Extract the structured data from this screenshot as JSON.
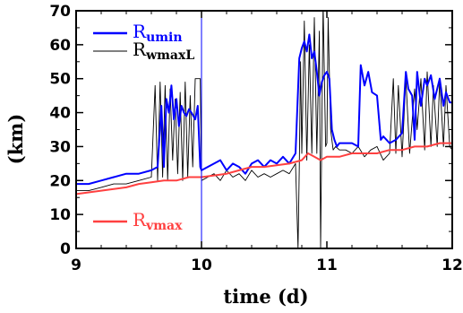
{
  "chart_data": {
    "type": "line",
    "xlabel": "time (d)",
    "ylabel": "(km)",
    "xlim": [
      9,
      12
    ],
    "ylim": [
      0,
      70
    ],
    "xticks": [
      "9",
      "10",
      "11",
      "12"
    ],
    "yticks": [
      "0",
      "10",
      "20",
      "30",
      "40",
      "50",
      "60",
      "70"
    ],
    "grid": false,
    "markers": [
      {
        "name": "vertical-marker",
        "x": 10,
        "color": "#0000ff"
      }
    ],
    "legend": [
      {
        "main": "R",
        "sub": "umin",
        "color": "#0000ff"
      },
      {
        "main": "R",
        "sub": "wmaxL",
        "color": "#000000"
      },
      {
        "main": "R",
        "sub": "vmax",
        "color": "#ff4040"
      }
    ],
    "series": [
      {
        "id": "black",
        "color": "#000000",
        "width": 0.9,
        "x": [
          9.0,
          9.1,
          9.2,
          9.3,
          9.4,
          9.5,
          9.6,
          9.63,
          9.65,
          9.67,
          9.69,
          9.71,
          9.73,
          9.75,
          9.77,
          9.79,
          9.81,
          9.83,
          9.85,
          9.87,
          9.89,
          9.91,
          9.93,
          9.95,
          9.97,
          9.99,
          10.0,
          10.05,
          10.1,
          10.15,
          10.2,
          10.25,
          10.3,
          10.35,
          10.4,
          10.45,
          10.5,
          10.55,
          10.6,
          10.65,
          10.7,
          10.75,
          10.77,
          10.78,
          10.79,
          10.8,
          10.82,
          10.84,
          10.86,
          10.88,
          10.9,
          10.92,
          10.94,
          10.95,
          10.97,
          10.99,
          11.0,
          11.01,
          11.03,
          11.05,
          11.07,
          11.1,
          11.15,
          11.2,
          11.25,
          11.3,
          11.35,
          11.4,
          11.45,
          11.5,
          11.53,
          11.55,
          11.57,
          11.6,
          11.63,
          11.66,
          11.7,
          11.72,
          11.75,
          11.78,
          11.8,
          11.83,
          11.85,
          11.88,
          11.9,
          11.93,
          11.95,
          11.98,
          12.0
        ],
        "y": [
          17,
          17,
          18,
          19,
          19,
          20,
          21,
          48,
          20,
          49,
          21,
          48,
          20,
          47,
          26,
          44,
          22,
          46,
          20,
          49,
          21,
          45,
          24,
          50,
          50,
          50,
          20,
          21,
          22,
          20,
          23,
          21,
          22,
          20,
          23,
          21,
          22,
          21,
          22,
          23,
          22,
          25,
          0,
          24,
          55,
          28,
          67,
          26,
          60,
          28,
          68,
          28,
          64,
          0,
          72,
          30,
          31,
          68,
          35,
          29,
          30,
          29,
          29,
          28,
          30,
          27,
          29,
          30,
          26,
          28,
          50,
          28,
          48,
          27,
          50,
          28,
          47,
          35,
          50,
          29,
          52,
          30,
          48,
          30,
          50,
          30,
          48,
          30,
          29
        ]
      },
      {
        "id": "blue",
        "color": "#0000ff",
        "width": 2.0,
        "x": [
          9.0,
          9.1,
          9.2,
          9.3,
          9.4,
          9.5,
          9.6,
          9.65,
          9.68,
          9.7,
          9.72,
          9.74,
          9.76,
          9.78,
          9.8,
          9.82,
          9.84,
          9.86,
          9.88,
          9.9,
          9.92,
          9.95,
          9.97,
          9.99,
          10.0,
          10.05,
          10.1,
          10.15,
          10.2,
          10.25,
          10.3,
          10.35,
          10.4,
          10.45,
          10.5,
          10.55,
          10.6,
          10.65,
          10.7,
          10.75,
          10.78,
          10.8,
          10.82,
          10.84,
          10.86,
          10.88,
          10.9,
          10.92,
          10.94,
          10.96,
          10.98,
          11.0,
          11.02,
          11.04,
          11.06,
          11.08,
          11.1,
          11.15,
          11.2,
          11.25,
          11.27,
          11.3,
          11.33,
          11.36,
          11.4,
          11.43,
          11.45,
          11.5,
          11.55,
          11.6,
          11.63,
          11.65,
          11.68,
          11.7,
          11.72,
          11.75,
          11.78,
          11.8,
          11.83,
          11.86,
          11.9,
          11.93,
          11.95,
          11.98,
          12.0
        ],
        "y": [
          19,
          19,
          20,
          21,
          22,
          22,
          23,
          24,
          42,
          24,
          44,
          40,
          48,
          38,
          44,
          36,
          42,
          40,
          39,
          41,
          40,
          38,
          42,
          24,
          23,
          24,
          25,
          26,
          23,
          25,
          24,
          22,
          25,
          26,
          24,
          26,
          25,
          27,
          25,
          28,
          56,
          59,
          61,
          58,
          63,
          56,
          58,
          52,
          45,
          49,
          51,
          52,
          50,
          35,
          32,
          30,
          31,
          31,
          31,
          30,
          54,
          48,
          52,
          46,
          45,
          32,
          33,
          31,
          32,
          34,
          52,
          47,
          45,
          32,
          52,
          42,
          50,
          48,
          51,
          44,
          50,
          42,
          46,
          43,
          43
        ]
      },
      {
        "id": "red",
        "color": "#ff4040",
        "width": 2.0,
        "x": [
          9.0,
          9.1,
          9.2,
          9.3,
          9.4,
          9.5,
          9.6,
          9.7,
          9.8,
          9.9,
          10.0,
          10.1,
          10.2,
          10.3,
          10.4,
          10.5,
          10.6,
          10.7,
          10.8,
          10.85,
          10.9,
          10.95,
          11.0,
          11.1,
          11.2,
          11.3,
          11.4,
          11.5,
          11.6,
          11.7,
          11.8,
          11.9,
          12.0
        ],
        "y": [
          16,
          16.5,
          17,
          17.5,
          18,
          19,
          19.5,
          20,
          20,
          21,
          21,
          21.5,
          22,
          23,
          24,
          24,
          24.5,
          25,
          26,
          28,
          27,
          26,
          27,
          27,
          28,
          28,
          28,
          29,
          29,
          30,
          30,
          31,
          31
        ]
      }
    ]
  }
}
